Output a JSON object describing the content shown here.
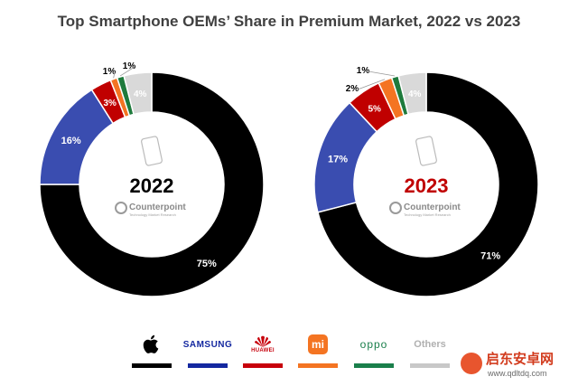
{
  "chart_data": {
    "type": "pie",
    "title": "Top Smartphone OEMs’ Share in Premium Market, 2022 vs 2023",
    "charts": [
      {
        "name": "2022",
        "center_label": "2022",
        "center_label_color": "#000000",
        "slices": [
          {
            "series": "Apple",
            "value": 75,
            "label": "75%",
            "color": "#000000"
          },
          {
            "series": "Samsung",
            "value": 16,
            "label": "16%",
            "color": "#3a4db0"
          },
          {
            "series": "Huawei",
            "value": 3,
            "label": "3%",
            "color": "#c00000"
          },
          {
            "series": "Xiaomi",
            "value": 1,
            "label": "1%",
            "color": "#f47422"
          },
          {
            "series": "OPPO",
            "value": 1,
            "label": "1%",
            "color": "#1e7a3c"
          },
          {
            "series": "Others",
            "value": 4,
            "label": "4%",
            "color": "#d9d9d9"
          }
        ]
      },
      {
        "name": "2023",
        "center_label": "2023",
        "center_label_color": "#c00000",
        "slices": [
          {
            "series": "Apple",
            "value": 71,
            "label": "71%",
            "color": "#000000"
          },
          {
            "series": "Samsung",
            "value": 17,
            "label": "17%",
            "color": "#3a4db0"
          },
          {
            "series": "Huawei",
            "value": 5,
            "label": "5%",
            "color": "#c00000"
          },
          {
            "series": "Xiaomi",
            "value": 2,
            "label": "2%",
            "color": "#f47422"
          },
          {
            "series": "OPPO",
            "value": 1,
            "label": "1%",
            "color": "#1e7a3c"
          },
          {
            "series": "Others",
            "value": 4,
            "label": "4%",
            "color": "#d9d9d9"
          }
        ]
      }
    ],
    "brand": "Counterpoint",
    "brand_tagline": "Technology Market Research",
    "legend": [
      {
        "name": "Apple",
        "color": "#000000"
      },
      {
        "name": "SAMSUNG",
        "color": "#1428a0"
      },
      {
        "name": "HUAWEI",
        "color": "#c7000b"
      },
      {
        "name": "Xiaomi",
        "color": "#f47422"
      },
      {
        "name": "oppo",
        "color": "#1a7f4b"
      },
      {
        "name": "Others",
        "color": "#c8c8c8"
      }
    ]
  },
  "watermark": {
    "title": "启东安卓网",
    "url": "www.qdltdq.com"
  }
}
